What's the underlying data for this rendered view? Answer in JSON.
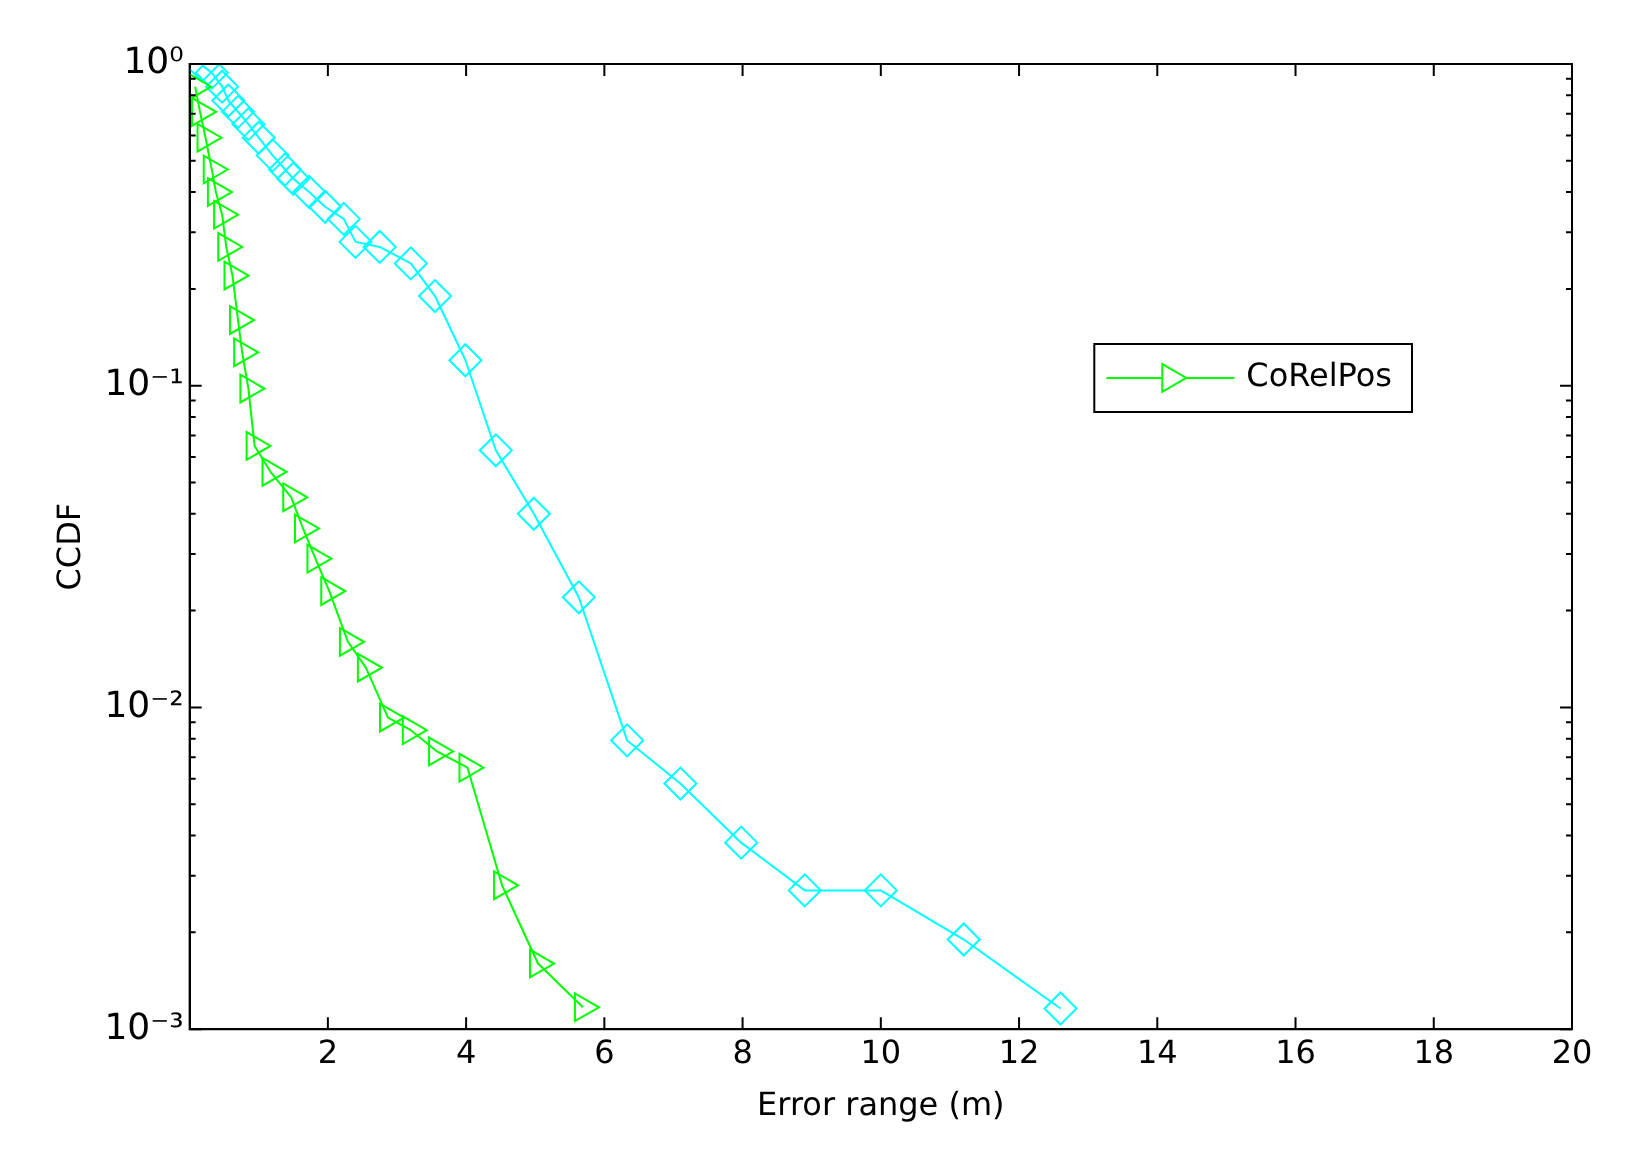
{
  "chart_data": {
    "type": "line",
    "xlabel": "Error range (m)",
    "ylabel": "CCDF",
    "log": "y",
    "legend": "right",
    "grid": false,
    "xlim": [
      0,
      20
    ],
    "xticks": [
      2,
      4,
      6,
      8,
      10,
      12,
      14,
      16,
      18,
      20
    ],
    "ylim": [
      0.001,
      1
    ],
    "yticks": [
      {
        "value": 1,
        "label": "10⁰"
      },
      {
        "value": 0.1,
        "label": "10⁻¹"
      },
      {
        "value": 0.01,
        "label": "10⁻²"
      },
      {
        "value": 0.001,
        "label": "10⁻³"
      },
      {
        "value": 0.002,
        "label": null
      },
      {
        "value": 0.003,
        "label": null
      },
      {
        "value": 0.004,
        "label": null
      },
      {
        "value": 0.005,
        "label": null
      },
      {
        "value": 0.006,
        "label": null
      },
      {
        "value": 0.007,
        "label": null
      },
      {
        "value": 0.008,
        "label": null
      },
      {
        "value": 0.009,
        "label": null
      },
      {
        "value": 0.02,
        "label": null
      },
      {
        "value": 0.03,
        "label": null
      },
      {
        "value": 0.04,
        "label": null
      },
      {
        "value": 0.05,
        "label": null
      },
      {
        "value": 0.06,
        "label": null
      },
      {
        "value": 0.07,
        "label": null
      },
      {
        "value": 0.08,
        "label": null
      },
      {
        "value": 0.09,
        "label": null
      },
      {
        "value": 0.2,
        "label": null
      },
      {
        "value": 0.3,
        "label": null
      },
      {
        "value": 0.4,
        "label": null
      },
      {
        "value": 0.5,
        "label": null
      },
      {
        "value": 0.6,
        "label": null
      },
      {
        "value": 0.7,
        "label": null
      },
      {
        "value": 0.8,
        "label": null
      },
      {
        "value": 0.9,
        "label": null
      }
    ],
    "series": [
      {
        "name": "CoRelPos",
        "color": "#00ff00",
        "marker": "triangle",
        "x": [
          0.08,
          0.15,
          0.23,
          0.32,
          0.38,
          0.47,
          0.53,
          0.62,
          0.7,
          0.76,
          0.85,
          0.94,
          1.17,
          1.47,
          1.64,
          1.82,
          2.02,
          2.29,
          2.55,
          2.87,
          3.2,
          3.58,
          4.02,
          4.52,
          5.04,
          5.69
        ],
        "values": [
          0.85,
          0.71,
          0.59,
          0.47,
          0.4,
          0.34,
          0.27,
          0.22,
          0.16,
          0.127,
          0.098,
          0.065,
          0.054,
          0.045,
          0.036,
          0.029,
          0.023,
          0.016,
          0.0133,
          0.0093,
          0.0085,
          0.0073,
          0.0065,
          0.0028,
          0.0016,
          0.00117
        ]
      },
      {
        "color": "#00ffff",
        "marker": "diamond",
        "x": [
          0.18,
          0.32,
          0.47,
          0.56,
          0.7,
          0.85,
          1,
          1.2,
          1.38,
          1.5,
          1.73,
          1.96,
          2.23,
          2.4,
          2.75,
          3.2,
          3.55,
          3.99,
          4.43,
          4.98,
          5.63,
          6.33,
          7.1,
          7.98,
          8.9,
          10,
          11.2,
          12.6
        ],
        "values": [
          0.99,
          0.94,
          0.85,
          0.77,
          0.71,
          0.65,
          0.59,
          0.52,
          0.47,
          0.44,
          0.4,
          0.36,
          0.33,
          0.28,
          0.27,
          0.24,
          0.19,
          0.12,
          0.063,
          0.04,
          0.022,
          0.0079,
          0.0058,
          0.0038,
          0.0027,
          0.0027,
          0.0019,
          0.00116
        ]
      }
    ]
  }
}
